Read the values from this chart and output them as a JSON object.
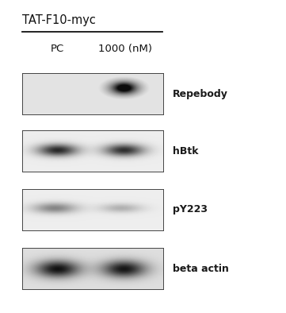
{
  "title": "TAT-F10-myc",
  "col_labels": [
    "PC",
    "1000 (nM)"
  ],
  "row_labels": [
    "Repebody",
    "hBtk",
    "pY223",
    "beta actin"
  ],
  "background_color": "#ffffff",
  "fig_width": 3.61,
  "fig_height": 3.94
}
